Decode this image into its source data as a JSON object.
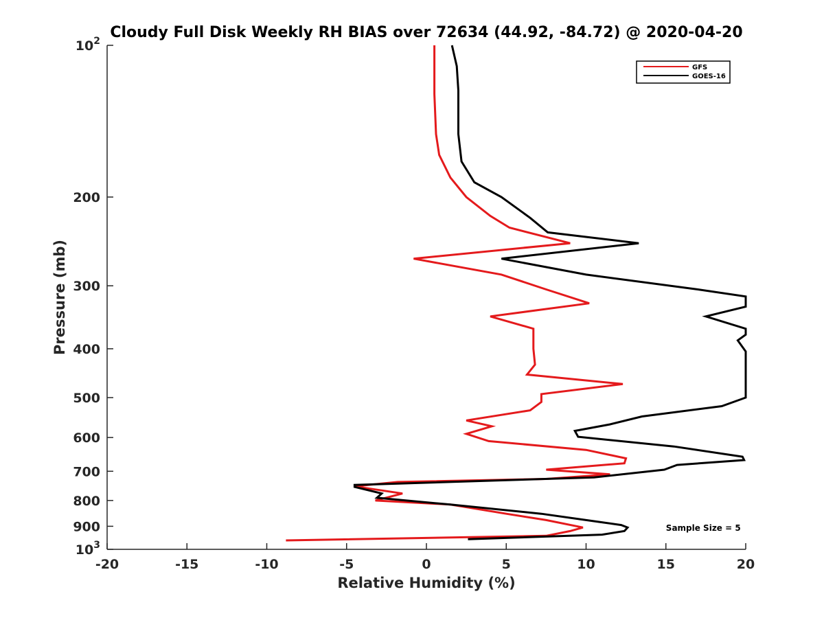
{
  "chart_data": {
    "type": "line",
    "title": "Cloudy Full Disk Weekly RH BIAS over 72634 (44.92, -84.72) @ 2020-04-20",
    "xlabel": "Relative Humidity (%)",
    "ylabel": "Pressure (mb)",
    "xlim": [
      -20,
      20
    ],
    "ylim": [
      100,
      1000
    ],
    "y_scale": "log",
    "y_reversed": true,
    "grid": false,
    "legend_position": "top-right",
    "x_ticks": [
      "-20",
      "-15",
      "-10",
      "-5",
      "0",
      "5",
      "10",
      "15",
      "20"
    ],
    "y_ticks": [
      {
        "value": 100,
        "base": "10",
        "exp": "2"
      },
      {
        "value": 200,
        "label": "200"
      },
      {
        "value": 300,
        "label": "300"
      },
      {
        "value": 400,
        "label": "400"
      },
      {
        "value": 500,
        "label": "500"
      },
      {
        "value": 600,
        "label": "600"
      },
      {
        "value": 700,
        "label": "700"
      },
      {
        "value": 800,
        "label": "800"
      },
      {
        "value": 900,
        "label": "900"
      },
      {
        "value": 1000,
        "base": "10",
        "exp": "3"
      }
    ],
    "series": [
      {
        "name": "GFS",
        "color": "#e41a1c",
        "points": [
          [
            0.5,
            100
          ],
          [
            0.5,
            125
          ],
          [
            0.6,
            150
          ],
          [
            0.8,
            165
          ],
          [
            1.5,
            183
          ],
          [
            2.5,
            200
          ],
          [
            4.0,
            218
          ],
          [
            5.2,
            230
          ],
          [
            9.0,
            247
          ],
          [
            -0.8,
            265
          ],
          [
            4.7,
            285
          ],
          [
            7.5,
            305
          ],
          [
            10.2,
            325
          ],
          [
            4.0,
            345
          ],
          [
            6.7,
            365
          ],
          [
            6.7,
            400
          ],
          [
            6.8,
            430
          ],
          [
            6.3,
            450
          ],
          [
            12.3,
            470
          ],
          [
            7.2,
            492
          ],
          [
            7.2,
            510
          ],
          [
            6.5,
            530
          ],
          [
            2.5,
            555
          ],
          [
            4.1,
            570
          ],
          [
            2.5,
            590
          ],
          [
            3.9,
            610
          ],
          [
            10.0,
            635
          ],
          [
            12.5,
            660
          ],
          [
            12.4,
            675
          ],
          [
            7.5,
            695
          ],
          [
            11.5,
            710
          ],
          [
            7.5,
            725
          ],
          [
            -1.8,
            735
          ],
          [
            -4.5,
            750
          ],
          [
            -1.5,
            775
          ],
          [
            -3.2,
            800
          ],
          [
            1.5,
            815
          ],
          [
            5.0,
            850
          ],
          [
            7.5,
            875
          ],
          [
            9.8,
            905
          ],
          [
            9.0,
            920
          ],
          [
            7.5,
            940
          ],
          [
            -8.8,
            960
          ]
        ]
      },
      {
        "name": "GOES-16",
        "color": "#000000",
        "points": [
          [
            1.6,
            100
          ],
          [
            1.9,
            110
          ],
          [
            2.0,
            123
          ],
          [
            2.0,
            150
          ],
          [
            2.2,
            170
          ],
          [
            3.0,
            187
          ],
          [
            4.7,
            200
          ],
          [
            6.5,
            220
          ],
          [
            7.6,
            235
          ],
          [
            13.3,
            247
          ],
          [
            4.7,
            265
          ],
          [
            10.0,
            285
          ],
          [
            17.0,
            305
          ],
          [
            20.0,
            315
          ],
          [
            20.0,
            330
          ],
          [
            17.5,
            345
          ],
          [
            20.0,
            365
          ],
          [
            20.0,
            375
          ],
          [
            19.5,
            385
          ],
          [
            20.0,
            405
          ],
          [
            20.0,
            500
          ],
          [
            18.5,
            520
          ],
          [
            13.5,
            545
          ],
          [
            11.5,
            565
          ],
          [
            9.3,
            582
          ],
          [
            9.5,
            598
          ],
          [
            15.5,
            625
          ],
          [
            19.8,
            655
          ],
          [
            19.9,
            665
          ],
          [
            15.7,
            680
          ],
          [
            14.9,
            695
          ],
          [
            10.5,
            720
          ],
          [
            -4.5,
            745
          ],
          [
            -4.5,
            752
          ],
          [
            -2.8,
            775
          ],
          [
            -3.1,
            790
          ],
          [
            1.5,
            815
          ],
          [
            7.2,
            850
          ],
          [
            10.0,
            875
          ],
          [
            12.2,
            895
          ],
          [
            12.6,
            905
          ],
          [
            12.4,
            920
          ],
          [
            11.0,
            935
          ],
          [
            2.6,
            955
          ]
        ]
      }
    ],
    "annotations": [
      {
        "text": "Sample Size = 5",
        "x": 15.0,
        "y": 905
      }
    ]
  }
}
